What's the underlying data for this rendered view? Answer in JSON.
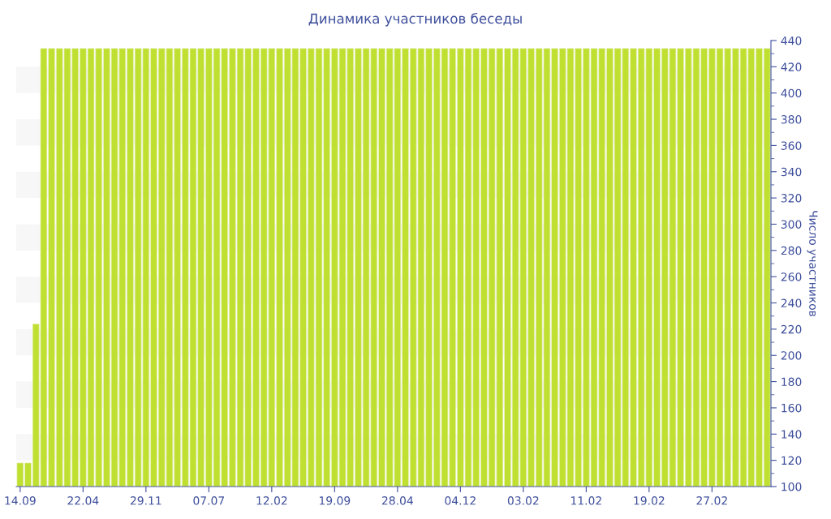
{
  "chart_data": {
    "type": "bar",
    "title": "Динамика участников беседы",
    "ylabel": "Число участников",
    "categories": [
      "14.09",
      null,
      null,
      null,
      null,
      null,
      null,
      null,
      "22.04",
      null,
      null,
      null,
      null,
      null,
      null,
      null,
      "29.11",
      null,
      null,
      null,
      null,
      null,
      null,
      null,
      "07.07",
      null,
      null,
      null,
      null,
      null,
      null,
      null,
      "12.02",
      null,
      null,
      null,
      null,
      null,
      null,
      null,
      "19.09",
      null,
      null,
      null,
      null,
      null,
      null,
      null,
      "28.04",
      null,
      null,
      null,
      null,
      null,
      null,
      null,
      "04.12",
      null,
      null,
      null,
      null,
      null,
      null,
      null,
      "03.02",
      null,
      null,
      null,
      null,
      null,
      null,
      null,
      "11.02",
      null,
      null,
      null,
      null,
      null,
      null,
      null,
      "19.02",
      null,
      null,
      null,
      null,
      null,
      null,
      null,
      "27.02",
      null,
      null,
      null,
      null,
      null,
      null,
      null
    ],
    "values": [
      118,
      118,
      224,
      434,
      434,
      434,
      434,
      434,
      434,
      434,
      434,
      434,
      434,
      434,
      434,
      434,
      434,
      434,
      434,
      434,
      434,
      434,
      434,
      434,
      434,
      434,
      434,
      434,
      434,
      434,
      434,
      434,
      434,
      434,
      434,
      434,
      434,
      434,
      434,
      434,
      434,
      434,
      434,
      434,
      434,
      434,
      434,
      434,
      434,
      434,
      434,
      434,
      434,
      434,
      434,
      434,
      434,
      434,
      434,
      434,
      434,
      434,
      434,
      434,
      434,
      434,
      434,
      434,
      434,
      434,
      434,
      434,
      434,
      434,
      434,
      434,
      434,
      434,
      434,
      434,
      434,
      434,
      434,
      434,
      434,
      434,
      434,
      434,
      434,
      434,
      434,
      434,
      434,
      434,
      434,
      434
    ],
    "color": "#bfe030",
    "ylim": [
      100,
      440
    ],
    "yticks": [
      100,
      120,
      140,
      160,
      180,
      200,
      220,
      240,
      260,
      280,
      300,
      320,
      340,
      360,
      380,
      400,
      420,
      440
    ],
    "bands": [
      {
        "axis": "y",
        "from": 120,
        "to": 140,
        "color": "#f7f7f7"
      },
      {
        "axis": "y",
        "from": 160,
        "to": 180,
        "color": "#f7f7f7"
      },
      {
        "axis": "y",
        "from": 200,
        "to": 220,
        "color": "#f7f7f7"
      },
      {
        "axis": "y",
        "from": 240,
        "to": 260,
        "color": "#f7f7f7"
      },
      {
        "axis": "y",
        "from": 280,
        "to": 300,
        "color": "#f7f7f7"
      },
      {
        "axis": "y",
        "from": 320,
        "to": 340,
        "color": "#f7f7f7"
      },
      {
        "axis": "y",
        "from": 360,
        "to": 380,
        "color": "#f7f7f7"
      },
      {
        "axis": "y",
        "from": 400,
        "to": 420,
        "color": "#f7f7f7"
      }
    ],
    "grid": false,
    "legend": false
  }
}
